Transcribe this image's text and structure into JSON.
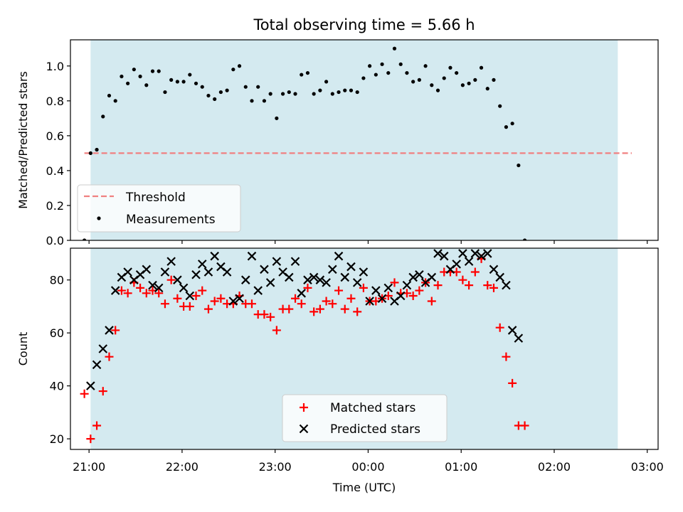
{
  "title": "Total observing time = 5.66 h",
  "colors": {
    "night_span": "#d4eaf0",
    "threshold_line": "#f08080",
    "measurements": "#000000",
    "matched": "#ff0000",
    "predicted": "#000000"
  },
  "chart_data": [
    {
      "type": "scatter",
      "ylabel": "Matched/Predicted stars",
      "ylim": [
        0.0,
        1.15
      ],
      "yticks": [
        0.0,
        0.2,
        0.4,
        0.6,
        0.8,
        1.0
      ],
      "ytick_labels": [
        "0.0",
        "0.2",
        "0.4",
        "0.6",
        "0.8",
        "1.0"
      ],
      "xlim": [
        "20:48",
        "03:07"
      ],
      "xticks": [
        "21:00",
        "22:00",
        "23:00",
        "00:00",
        "01:00",
        "02:00",
        "03:00"
      ],
      "shaded_span": [
        "21:01",
        "02:41"
      ],
      "legend_location": "lower-left",
      "threshold": {
        "name": "Threshold",
        "value": 0.5,
        "x_range": [
          "20:57",
          "02:50"
        ]
      },
      "series": [
        {
          "name": "Measurements",
          "marker": "dot",
          "points": [
            [
              "20:57",
              0.0
            ],
            [
              "21:01",
              0.5
            ],
            [
              "21:05",
              0.52
            ],
            [
              "21:09",
              0.71
            ],
            [
              "21:13",
              0.83
            ],
            [
              "21:17",
              0.8
            ],
            [
              "21:21",
              0.94
            ],
            [
              "21:25",
              0.9
            ],
            [
              "21:29",
              0.98
            ],
            [
              "21:33",
              0.94
            ],
            [
              "21:37",
              0.89
            ],
            [
              "21:41",
              0.97
            ],
            [
              "21:45",
              0.97
            ],
            [
              "21:49",
              0.85
            ],
            [
              "21:53",
              0.92
            ],
            [
              "21:57",
              0.91
            ],
            [
              "22:01",
              0.91
            ],
            [
              "22:05",
              0.95
            ],
            [
              "22:09",
              0.9
            ],
            [
              "22:13",
              0.88
            ],
            [
              "22:17",
              0.83
            ],
            [
              "22:21",
              0.81
            ],
            [
              "22:25",
              0.85
            ],
            [
              "22:29",
              0.86
            ],
            [
              "22:33",
              0.98
            ],
            [
              "22:37",
              1.0
            ],
            [
              "22:41",
              0.88
            ],
            [
              "22:45",
              0.8
            ],
            [
              "22:49",
              0.88
            ],
            [
              "22:53",
              0.8
            ],
            [
              "22:57",
              0.84
            ],
            [
              "23:01",
              0.7
            ],
            [
              "23:05",
              0.84
            ],
            [
              "23:09",
              0.85
            ],
            [
              "23:13",
              0.84
            ],
            [
              "23:17",
              0.95
            ],
            [
              "23:21",
              0.96
            ],
            [
              "23:25",
              0.84
            ],
            [
              "23:29",
              0.86
            ],
            [
              "23:33",
              0.91
            ],
            [
              "23:37",
              0.84
            ],
            [
              "23:41",
              0.85
            ],
            [
              "23:45",
              0.86
            ],
            [
              "23:49",
              0.86
            ],
            [
              "23:53",
              0.85
            ],
            [
              "23:57",
              0.93
            ],
            [
              "00:01",
              1.0
            ],
            [
              "00:05",
              0.95
            ],
            [
              "00:09",
              1.01
            ],
            [
              "00:13",
              0.96
            ],
            [
              "00:17",
              1.1
            ],
            [
              "00:21",
              1.01
            ],
            [
              "00:25",
              0.96
            ],
            [
              "00:29",
              0.91
            ],
            [
              "00:33",
              0.92
            ],
            [
              "00:37",
              1.0
            ],
            [
              "00:41",
              0.89
            ],
            [
              "00:45",
              0.86
            ],
            [
              "00:49",
              0.93
            ],
            [
              "00:53",
              0.99
            ],
            [
              "00:57",
              0.96
            ],
            [
              "01:01",
              0.89
            ],
            [
              "01:05",
              0.9
            ],
            [
              "01:09",
              0.92
            ],
            [
              "01:13",
              0.99
            ],
            [
              "01:17",
              0.87
            ],
            [
              "01:21",
              0.92
            ],
            [
              "01:25",
              0.77
            ],
            [
              "01:29",
              0.65
            ],
            [
              "01:33",
              0.67
            ],
            [
              "01:37",
              0.43
            ],
            [
              "01:41",
              0.0
            ]
          ]
        }
      ]
    },
    {
      "type": "scatter",
      "xlabel": "Time (UTC)",
      "ylabel": "Count",
      "ylim": [
        16,
        92
      ],
      "yticks": [
        20,
        40,
        60,
        80
      ],
      "ytick_labels": [
        "20",
        "40",
        "60",
        "80"
      ],
      "xlim": [
        "20:48",
        "03:07"
      ],
      "xticks": [
        "21:00",
        "22:00",
        "23:00",
        "00:00",
        "01:00",
        "02:00",
        "03:00"
      ],
      "xtick_labels": [
        "21:00",
        "22:00",
        "23:00",
        "00:00",
        "01:00",
        "02:00",
        "03:00"
      ],
      "shaded_span": [
        "21:01",
        "02:41"
      ],
      "legend_location": "lower-center",
      "series": [
        {
          "name": "Matched stars",
          "marker": "plus",
          "points": [
            [
              "20:57",
              37
            ],
            [
              "21:01",
              20
            ],
            [
              "21:05",
              25
            ],
            [
              "21:09",
              38
            ],
            [
              "21:13",
              51
            ],
            [
              "21:17",
              61
            ],
            [
              "21:21",
              76
            ],
            [
              "21:25",
              75
            ],
            [
              "21:29",
              79
            ],
            [
              "21:33",
              77
            ],
            [
              "21:37",
              75
            ],
            [
              "21:41",
              76
            ],
            [
              "21:45",
              75
            ],
            [
              "21:49",
              71
            ],
            [
              "21:53",
              80
            ],
            [
              "21:57",
              73
            ],
            [
              "22:01",
              70
            ],
            [
              "22:05",
              70
            ],
            [
              "22:09",
              74
            ],
            [
              "22:13",
              76
            ],
            [
              "22:17",
              69
            ],
            [
              "22:21",
              72
            ],
            [
              "22:25",
              73
            ],
            [
              "22:29",
              71
            ],
            [
              "22:33",
              71
            ],
            [
              "22:37",
              74
            ],
            [
              "22:41",
              71
            ],
            [
              "22:45",
              71
            ],
            [
              "22:49",
              67
            ],
            [
              "22:53",
              67
            ],
            [
              "22:57",
              66
            ],
            [
              "23:01",
              61
            ],
            [
              "23:05",
              69
            ],
            [
              "23:09",
              69
            ],
            [
              "23:13",
              73
            ],
            [
              "23:17",
              71
            ],
            [
              "23:21",
              77
            ],
            [
              "23:25",
              68
            ],
            [
              "23:29",
              69
            ],
            [
              "23:33",
              72
            ],
            [
              "23:37",
              71
            ],
            [
              "23:41",
              76
            ],
            [
              "23:45",
              69
            ],
            [
              "23:49",
              73
            ],
            [
              "23:53",
              68
            ],
            [
              "23:57",
              77
            ],
            [
              "00:01",
              72
            ],
            [
              "00:05",
              72
            ],
            [
              "00:09",
              73
            ],
            [
              "00:13",
              74
            ],
            [
              "00:17",
              79
            ],
            [
              "00:21",
              75
            ],
            [
              "00:25",
              75
            ],
            [
              "00:29",
              74
            ],
            [
              "00:33",
              76
            ],
            [
              "00:37",
              79
            ],
            [
              "00:41",
              72
            ],
            [
              "00:45",
              78
            ],
            [
              "00:49",
              83
            ],
            [
              "00:53",
              83
            ],
            [
              "00:57",
              83
            ],
            [
              "01:01",
              80
            ],
            [
              "01:05",
              78
            ],
            [
              "01:09",
              83
            ],
            [
              "01:13",
              88
            ],
            [
              "01:17",
              78
            ],
            [
              "01:21",
              77
            ],
            [
              "01:25",
              62
            ],
            [
              "01:29",
              51
            ],
            [
              "01:33",
              41
            ],
            [
              "01:37",
              25
            ],
            [
              "01:41",
              25
            ]
          ]
        },
        {
          "name": "Predicted stars",
          "marker": "x",
          "points": [
            [
              "21:01",
              40
            ],
            [
              "21:05",
              48
            ],
            [
              "21:09",
              54
            ],
            [
              "21:13",
              61
            ],
            [
              "21:17",
              76
            ],
            [
              "21:21",
              81
            ],
            [
              "21:25",
              83
            ],
            [
              "21:29",
              80
            ],
            [
              "21:33",
              82
            ],
            [
              "21:37",
              84
            ],
            [
              "21:41",
              78
            ],
            [
              "21:45",
              77
            ],
            [
              "21:49",
              83
            ],
            [
              "21:53",
              87
            ],
            [
              "21:57",
              80
            ],
            [
              "22:01",
              77
            ],
            [
              "22:05",
              74
            ],
            [
              "22:09",
              82
            ],
            [
              "22:13",
              86
            ],
            [
              "22:17",
              83
            ],
            [
              "22:21",
              89
            ],
            [
              "22:25",
              85
            ],
            [
              "22:29",
              83
            ],
            [
              "22:33",
              72
            ],
            [
              "22:37",
              73
            ],
            [
              "22:41",
              80
            ],
            [
              "22:45",
              89
            ],
            [
              "22:49",
              76
            ],
            [
              "22:53",
              84
            ],
            [
              "22:57",
              79
            ],
            [
              "23:01",
              87
            ],
            [
              "23:05",
              83
            ],
            [
              "23:09",
              81
            ],
            [
              "23:13",
              87
            ],
            [
              "23:17",
              75
            ],
            [
              "23:21",
              80
            ],
            [
              "23:25",
              81
            ],
            [
              "23:29",
              80
            ],
            [
              "23:33",
              79
            ],
            [
              "23:37",
              84
            ],
            [
              "23:41",
              89
            ],
            [
              "23:45",
              81
            ],
            [
              "23:49",
              85
            ],
            [
              "23:53",
              79
            ],
            [
              "23:57",
              83
            ],
            [
              "00:01",
              72
            ],
            [
              "00:05",
              76
            ],
            [
              "00:09",
              73
            ],
            [
              "00:13",
              77
            ],
            [
              "00:17",
              72
            ],
            [
              "00:21",
              74
            ],
            [
              "00:25",
              78
            ],
            [
              "00:29",
              81
            ],
            [
              "00:33",
              82
            ],
            [
              "00:37",
              79
            ],
            [
              "00:41",
              81
            ],
            [
              "00:45",
              90
            ],
            [
              "00:49",
              89
            ],
            [
              "00:53",
              84
            ],
            [
              "00:57",
              86
            ],
            [
              "01:01",
              90
            ],
            [
              "01:05",
              87
            ],
            [
              "01:09",
              90
            ],
            [
              "01:13",
              89
            ],
            [
              "01:17",
              90
            ],
            [
              "01:21",
              84
            ],
            [
              "01:25",
              81
            ],
            [
              "01:29",
              78
            ],
            [
              "01:33",
              61
            ],
            [
              "01:37",
              58
            ]
          ]
        }
      ]
    }
  ]
}
